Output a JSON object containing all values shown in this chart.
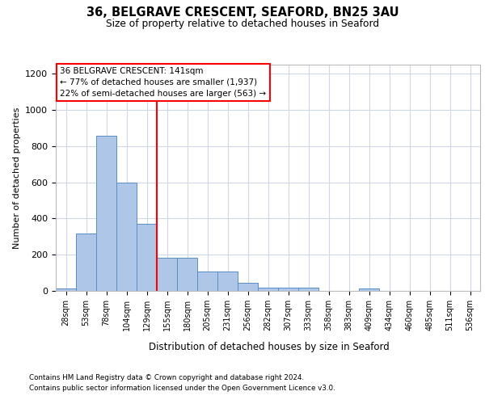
{
  "title_line1": "36, BELGRAVE CRESCENT, SEAFORD, BN25 3AU",
  "title_line2": "Size of property relative to detached houses in Seaford",
  "xlabel": "Distribution of detached houses by size in Seaford",
  "ylabel": "Number of detached properties",
  "footer_line1": "Contains HM Land Registry data © Crown copyright and database right 2024.",
  "footer_line2": "Contains public sector information licensed under the Open Government Licence v3.0.",
  "annotation_line1": "36 BELGRAVE CRESCENT: 141sqm",
  "annotation_line2": "← 77% of detached houses are smaller (1,937)",
  "annotation_line3": "22% of semi-detached houses are larger (563) →",
  "bar_values": [
    15,
    315,
    855,
    600,
    370,
    185,
    185,
    105,
    105,
    45,
    20,
    20,
    20,
    0,
    0,
    15,
    0,
    0,
    0,
    0,
    0
  ],
  "bar_labels": [
    "28sqm",
    "53sqm",
    "78sqm",
    "104sqm",
    "129sqm",
    "155sqm",
    "180sqm",
    "205sqm",
    "231sqm",
    "256sqm",
    "282sqm",
    "307sqm",
    "333sqm",
    "358sqm",
    "383sqm",
    "409sqm",
    "434sqm",
    "460sqm",
    "485sqm",
    "511sqm",
    "536sqm"
  ],
  "bar_color": "#aec6e8",
  "bar_edge_color": "#5a8fc4",
  "redline_x": 4.5,
  "marker_color": "red",
  "ylim": [
    0,
    1250
  ],
  "yticks": [
    0,
    200,
    400,
    600,
    800,
    1000,
    1200
  ],
  "background_color": "#ffffff",
  "grid_color": "#d0d8e8"
}
